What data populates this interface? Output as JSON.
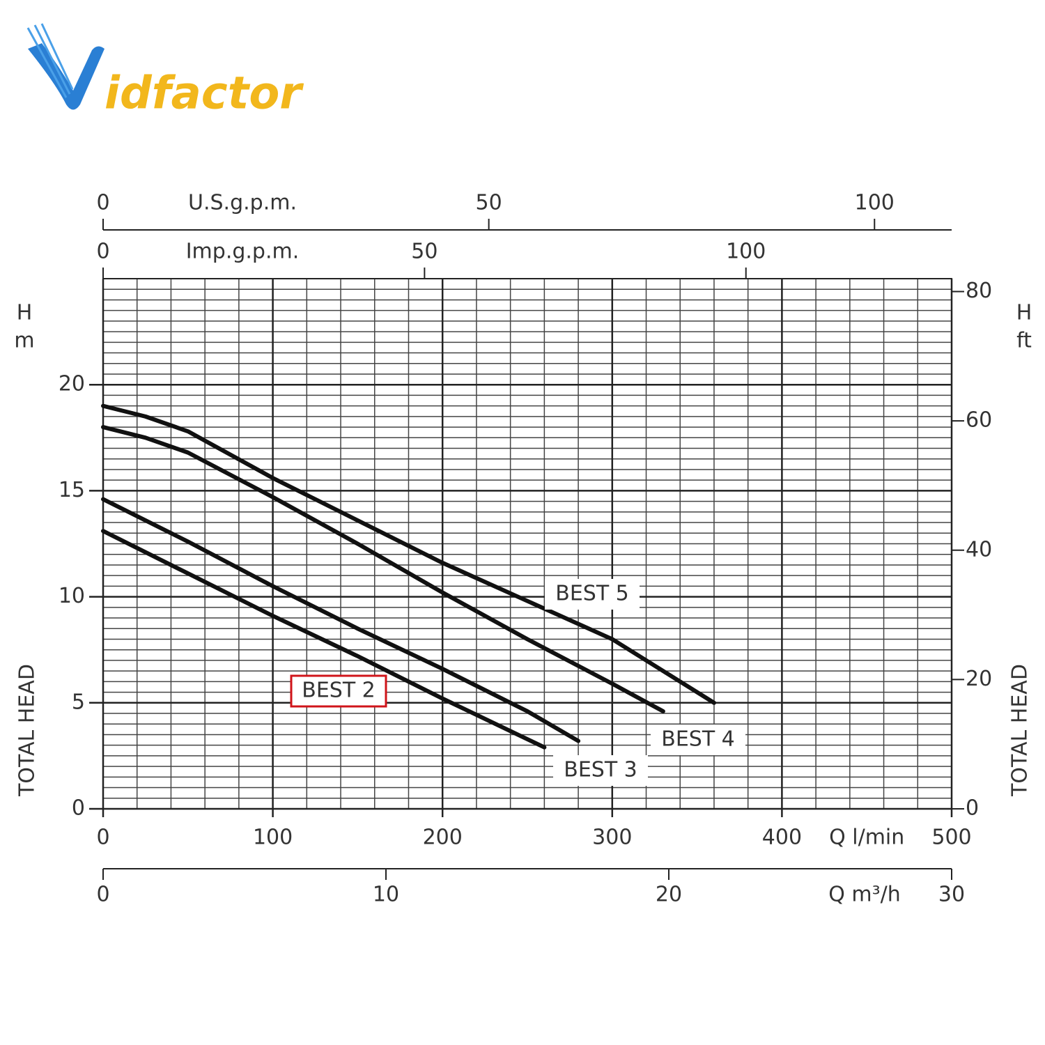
{
  "logo": "idfactor",
  "chart_data": {
    "type": "line",
    "xlabel": "Q l/min",
    "xlim": [
      0,
      500
    ],
    "xticks": [
      0,
      100,
      200,
      300,
      400,
      500
    ],
    "ylabel": "TOTAL HEAD",
    "y_unit": [
      "H",
      "m"
    ],
    "ylim": [
      0,
      25
    ],
    "yticks": [
      0,
      5,
      10,
      15,
      20
    ],
    "y2label": "TOTAL HEAD",
    "y2_unit": [
      "H",
      "ft"
    ],
    "y2lim": [
      0,
      82
    ],
    "y2ticks": [
      0,
      20,
      40,
      60,
      80
    ],
    "extra_x_axes": [
      {
        "label": "Q m³/h",
        "xlim": [
          0,
          30
        ],
        "xticks": [
          0,
          10,
          20,
          30
        ],
        "position": "bottom"
      },
      {
        "label": "Imp.g.p.m.",
        "xlim": [
          0,
          132
        ],
        "xticks": [
          0,
          50,
          100
        ],
        "position": "top"
      },
      {
        "label": "U.S.g.p.m.",
        "xlim": [
          0,
          110
        ],
        "xticks": [
          0,
          50,
          100
        ],
        "position": "top"
      }
    ],
    "grid": true,
    "xminor_step": 20,
    "yminor_step": 0.5,
    "series": [
      {
        "name": "BEST 5",
        "color": "#111111",
        "x": [
          0,
          25,
          50,
          100,
          150,
          200,
          250,
          300,
          360
        ],
        "values": [
          19,
          18.5,
          17.8,
          15.6,
          13.6,
          11.6,
          9.8,
          8.0,
          5
        ]
      },
      {
        "name": "BEST 4",
        "color": "#111111",
        "x": [
          0,
          25,
          50,
          100,
          150,
          200,
          250,
          300,
          330
        ],
        "values": [
          18,
          17.5,
          16.8,
          14.7,
          12.5,
          10.2,
          8.0,
          5.9,
          4.6
        ]
      },
      {
        "name": "BEST 3",
        "color": "#111111",
        "x": [
          0,
          50,
          100,
          150,
          200,
          250,
          280
        ],
        "values": [
          14.6,
          12.6,
          10.5,
          8.5,
          6.6,
          4.6,
          3.2
        ]
      },
      {
        "name": "BEST 2",
        "color": "#111111",
        "x": [
          0,
          50,
          100,
          150,
          200,
          260
        ],
        "values": [
          13.1,
          11.1,
          9.1,
          7.2,
          5.2,
          2.9
        ],
        "highlighted": true,
        "highlight_color": "#d0141a"
      }
    ]
  }
}
